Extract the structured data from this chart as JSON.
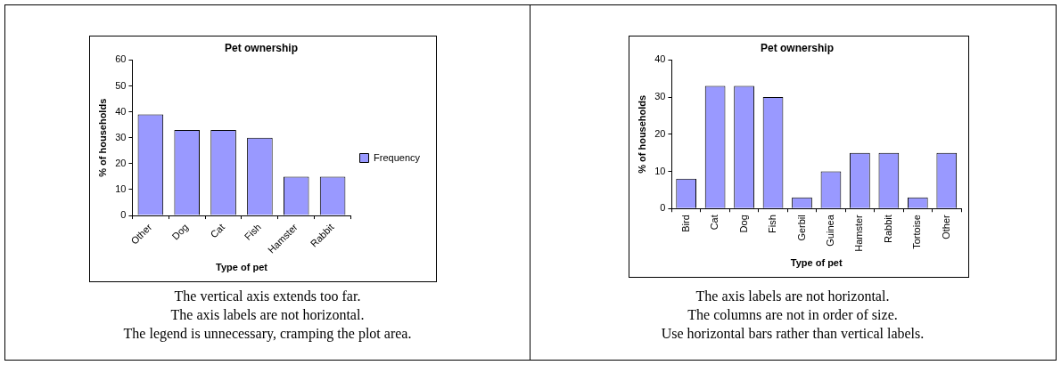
{
  "chart_data": [
    {
      "type": "bar",
      "title": "Pet ownership",
      "xlabel": "Type of pet",
      "ylabel": "% of households",
      "categories": [
        "Other",
        "Dog",
        "Cat",
        "Fish",
        "Hamster",
        "Rabbit"
      ],
      "series": [
        {
          "name": "Frequency",
          "color": "#9999ff",
          "values": [
            39,
            33,
            33,
            30,
            15,
            15
          ]
        }
      ],
      "ylim": [
        0,
        60
      ],
      "yticks": [
        0,
        10,
        20,
        30,
        40,
        50,
        60
      ],
      "grid": false,
      "legend": "right",
      "annotations": [
        "The vertical axis extends too far.",
        "The axis labels are not horizontal.",
        "The legend is unnecessary, cramping the plot area."
      ]
    },
    {
      "type": "bar",
      "title": "Pet ownership",
      "xlabel": "Type of pet",
      "ylabel": "% of households",
      "categories": [
        "Bird",
        "Cat",
        "Dog",
        "Fish",
        "Gerbil",
        "Guinea",
        "Hamster",
        "Rabbit",
        "Tortoise",
        "Other"
      ],
      "series": [
        {
          "color": "#9999ff",
          "values": [
            8,
            33,
            33,
            30,
            3,
            10,
            15,
            15,
            3,
            15
          ]
        }
      ],
      "ylim": [
        0,
        40
      ],
      "yticks": [
        0,
        10,
        20,
        30,
        40
      ],
      "grid": false,
      "annotations": [
        "The axis labels are not horizontal.",
        "The columns are not in order of size.",
        "Use horizontal bars rather than vertical labels."
      ]
    }
  ]
}
